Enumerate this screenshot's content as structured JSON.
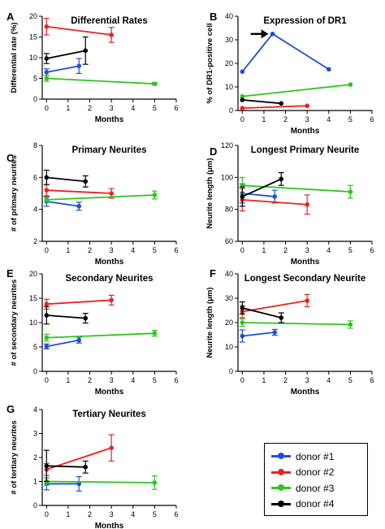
{
  "colors": {
    "donor1": "#1f4fd6",
    "donor2": "#e8231f",
    "donor3": "#2dc41c",
    "donor4": "#000000"
  },
  "legend": {
    "items": [
      {
        "label": "donor #1",
        "color_key": "donor1"
      },
      {
        "label": "donor #2",
        "color_key": "donor2"
      },
      {
        "label": "donor #3",
        "color_key": "donor3"
      },
      {
        "label": "donor #4",
        "color_key": "donor4"
      }
    ]
  },
  "chart_data": [
    {
      "panel": "A",
      "type": "line",
      "title": "Differential Rates",
      "xlabel": "Months",
      "ylabel": "Differential rate (%)",
      "xlim": [
        -0.2,
        6
      ],
      "ylim": [
        0,
        20
      ],
      "xticks": [
        0,
        1,
        2,
        3,
        4,
        5,
        6
      ],
      "yticks": [
        0,
        5,
        10,
        15,
        20
      ],
      "series": [
        {
          "color_key": "donor1",
          "x": [
            0,
            1.5
          ],
          "y": [
            6.5,
            8
          ],
          "err": [
            0.8,
            1.8
          ]
        },
        {
          "color_key": "donor2",
          "x": [
            0,
            3
          ],
          "y": [
            17.5,
            15.5
          ],
          "err": [
            2,
            1.8
          ]
        },
        {
          "color_key": "donor3",
          "x": [
            0,
            5
          ],
          "y": [
            5,
            3.7
          ],
          "err": [
            0.7,
            0.3
          ]
        },
        {
          "color_key": "donor4",
          "x": [
            0,
            1.8
          ],
          "y": [
            9.8,
            11.7
          ],
          "err": [
            1.2,
            3.3
          ]
        }
      ]
    },
    {
      "panel": "B",
      "type": "line",
      "title": "Expression of DR1",
      "xlabel": "Months",
      "ylabel": "% of DR1-positive cell",
      "xlim": [
        -0.2,
        6
      ],
      "ylim": [
        0,
        40
      ],
      "xticks": [
        0,
        1,
        2,
        3,
        4,
        5,
        6
      ],
      "yticks": [
        0,
        10,
        20,
        30,
        40
      ],
      "series": [
        {
          "color_key": "donor1",
          "x": [
            0,
            1.4,
            4
          ],
          "y": [
            16.5,
            32.5,
            17.5
          ],
          "err": [
            0,
            0,
            0
          ]
        },
        {
          "color_key": "donor2",
          "x": [
            0,
            3
          ],
          "y": [
            1,
            2
          ],
          "err": [
            0,
            0
          ]
        },
        {
          "color_key": "donor3",
          "x": [
            0,
            5
          ],
          "y": [
            6,
            11
          ],
          "err": [
            0,
            0
          ]
        },
        {
          "color_key": "donor4",
          "x": [
            0,
            1.8
          ],
          "y": [
            4.5,
            3
          ],
          "err": [
            0,
            0
          ]
        }
      ],
      "annotation": {
        "type": "arrow",
        "x": 1.4,
        "y": 32.5
      }
    },
    {
      "panel": "C",
      "type": "line",
      "title": "Primary Neurites",
      "xlabel": "Months",
      "ylabel": "# of primary neurites",
      "xlim": [
        -0.2,
        6
      ],
      "ylim": [
        2,
        8
      ],
      "xticks": [
        0,
        1,
        2,
        3,
        4,
        5,
        6
      ],
      "yticks": [
        2,
        4,
        6,
        8
      ],
      "series": [
        {
          "color_key": "donor1",
          "x": [
            0,
            1.5
          ],
          "y": [
            4.5,
            4.2
          ],
          "err": [
            0.3,
            0.25
          ]
        },
        {
          "color_key": "donor2",
          "x": [
            0,
            3
          ],
          "y": [
            5.2,
            5.0
          ],
          "err": [
            0.35,
            0.3
          ]
        },
        {
          "color_key": "donor3",
          "x": [
            0,
            5
          ],
          "y": [
            4.6,
            4.9
          ],
          "err": [
            0.15,
            0.25
          ]
        },
        {
          "color_key": "donor4",
          "x": [
            0,
            1.8
          ],
          "y": [
            6.0,
            5.75
          ],
          "err": [
            0.45,
            0.35
          ]
        }
      ]
    },
    {
      "panel": "D",
      "type": "line",
      "title": "Longest Primary Neurite",
      "xlabel": "Months",
      "ylabel": "Neurite length (μm)",
      "xlim": [
        -0.2,
        6
      ],
      "ylim": [
        60,
        120
      ],
      "xticks": [
        0,
        1,
        2,
        3,
        4,
        5,
        6
      ],
      "yticks": [
        60,
        80,
        100,
        120
      ],
      "series": [
        {
          "color_key": "donor1",
          "x": [
            0,
            1.5
          ],
          "y": [
            90,
            88
          ],
          "err": [
            6,
            4
          ]
        },
        {
          "color_key": "donor2",
          "x": [
            0,
            3
          ],
          "y": [
            86,
            83
          ],
          "err": [
            7,
            6
          ]
        },
        {
          "color_key": "donor3",
          "x": [
            0,
            5
          ],
          "y": [
            95,
            91
          ],
          "err": [
            5,
            4
          ]
        },
        {
          "color_key": "donor4",
          "x": [
            0,
            1.8
          ],
          "y": [
            88,
            99
          ],
          "err": [
            6,
            4
          ]
        }
      ]
    },
    {
      "panel": "E",
      "type": "line",
      "title": "Secondary Neurites",
      "xlabel": "Months",
      "ylabel": "# of secondary neurites",
      "xlim": [
        -0.2,
        6
      ],
      "ylim": [
        0,
        20
      ],
      "xticks": [
        0,
        1,
        2,
        3,
        4,
        5,
        6
      ],
      "yticks": [
        0,
        5,
        10,
        15,
        20
      ],
      "series": [
        {
          "color_key": "donor1",
          "x": [
            0,
            1.5
          ],
          "y": [
            5.1,
            6.4
          ],
          "err": [
            0.5,
            0.6
          ]
        },
        {
          "color_key": "donor2",
          "x": [
            0,
            3
          ],
          "y": [
            13.8,
            14.6
          ],
          "err": [
            1,
            1
          ]
        },
        {
          "color_key": "donor3",
          "x": [
            0,
            5
          ],
          "y": [
            6.9,
            7.8
          ],
          "err": [
            0.7,
            0.6
          ]
        },
        {
          "color_key": "donor4",
          "x": [
            0,
            1.8
          ],
          "y": [
            11.5,
            10.9
          ],
          "err": [
            1.8,
            1
          ]
        }
      ]
    },
    {
      "panel": "F",
      "type": "line",
      "title": "Longest Secondary Neurite",
      "xlabel": "Months",
      "ylabel": "Neurite length (μm)",
      "xlim": [
        -0.2,
        6
      ],
      "ylim": [
        0,
        40
      ],
      "xticks": [
        0,
        1,
        2,
        3,
        4,
        5,
        6
      ],
      "yticks": [
        0,
        10,
        20,
        30,
        40
      ],
      "series": [
        {
          "color_key": "donor1",
          "x": [
            0,
            1.5
          ],
          "y": [
            14.5,
            16
          ],
          "err": [
            2.5,
            1.2
          ]
        },
        {
          "color_key": "donor2",
          "x": [
            0,
            3
          ],
          "y": [
            24.5,
            29
          ],
          "err": [
            2.5,
            2.5
          ]
        },
        {
          "color_key": "donor3",
          "x": [
            0,
            5
          ],
          "y": [
            20,
            19.2
          ],
          "err": [
            1.5,
            1.5
          ]
        },
        {
          "color_key": "donor4",
          "x": [
            0,
            1.8
          ],
          "y": [
            26,
            22
          ],
          "err": [
            2.5,
            2
          ]
        }
      ]
    },
    {
      "panel": "G",
      "type": "line",
      "title": "Tertiary Neurites",
      "xlabel": "Months",
      "ylabel": "# of tertiary neurites",
      "xlim": [
        -0.2,
        6
      ],
      "ylim": [
        0,
        4
      ],
      "xticks": [
        0,
        1,
        2,
        3,
        4,
        5,
        6
      ],
      "yticks": [
        0,
        1,
        2,
        3,
        4
      ],
      "series": [
        {
          "color_key": "donor1",
          "x": [
            0,
            1.5
          ],
          "y": [
            0.9,
            0.9
          ],
          "err": [
            0.25,
            0.3
          ]
        },
        {
          "color_key": "donor2",
          "x": [
            0,
            3
          ],
          "y": [
            1.5,
            2.4
          ],
          "err": [
            0.25,
            0.55
          ]
        },
        {
          "color_key": "donor3",
          "x": [
            0,
            5
          ],
          "y": [
            1.0,
            0.95
          ],
          "err": [
            0.15,
            0.28
          ]
        },
        {
          "color_key": "donor4",
          "x": [
            0,
            1.8
          ],
          "y": [
            1.65,
            1.6
          ],
          "err": [
            0.65,
            0.25
          ]
        }
      ]
    }
  ]
}
